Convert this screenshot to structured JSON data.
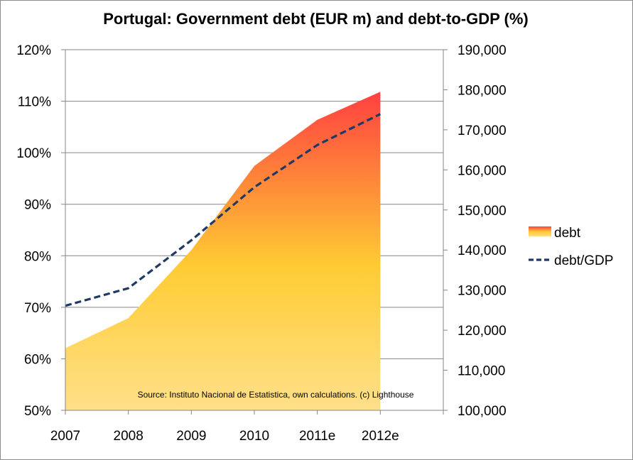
{
  "chart_data": {
    "type": "area",
    "title": "Portugal: Government debt (EUR m) and debt-to-GDP (%)",
    "categories": [
      "2007",
      "2008",
      "2009",
      "2010",
      "2011e",
      "2012e"
    ],
    "series": [
      {
        "name": "debt",
        "type": "area",
        "axis": "right",
        "values": [
          115500,
          123000,
          140000,
          161000,
          172500,
          179500
        ],
        "color_top": "#ff4040",
        "color_bottom": "#ffe08a"
      },
      {
        "name": "debt/GDP",
        "type": "line",
        "style": "dashed",
        "axis": "left",
        "values": [
          70.3,
          73.7,
          83.0,
          93.3,
          101.5,
          107.5
        ],
        "color": "#1f3864"
      }
    ],
    "y_left": {
      "ylim": [
        50,
        120
      ],
      "ticks": [
        50,
        60,
        70,
        80,
        90,
        100,
        110,
        120
      ],
      "tick_labels": [
        "50%",
        "60%",
        "70%",
        "80%",
        "90%",
        "100%",
        "110%",
        "120%"
      ]
    },
    "y_right": {
      "ylim": [
        100000,
        190000
      ],
      "ticks": [
        100000,
        110000,
        120000,
        130000,
        140000,
        150000,
        160000,
        170000,
        180000,
        190000
      ],
      "tick_labels": [
        "100,000",
        "110,000",
        "120,000",
        "130,000",
        "140,000",
        "150,000",
        "160,000",
        "170,000",
        "180,000",
        "190,000"
      ]
    },
    "grid": true,
    "legend": "right",
    "annotation": "Source: Instituto Nacional de Estatistica, own calculations. (c) Lighthouse"
  }
}
